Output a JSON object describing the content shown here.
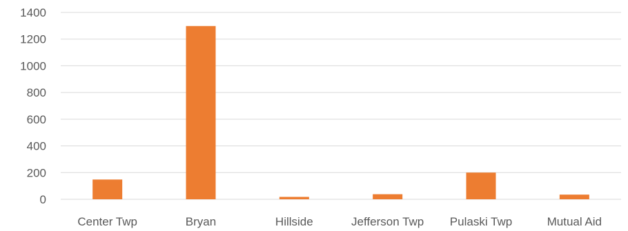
{
  "chart_data": {
    "type": "bar",
    "title": "",
    "xlabel": "",
    "ylabel": "",
    "categories": [
      "Center Twp",
      "Bryan",
      "Hillside",
      "Jefferson Twp",
      "Pulaski Twp",
      "Mutual Aid"
    ],
    "values": [
      148,
      1298,
      18,
      38,
      200,
      35
    ],
    "ylim": [
      0,
      1400
    ],
    "yticks": [
      "0",
      "200",
      "400",
      "600",
      "800",
      "1000",
      "1200",
      "1400"
    ],
    "grid": true,
    "legend": "none",
    "colors": {
      "bar": "#ed7d31",
      "grid": "#d9d9d9",
      "text": "#595959"
    }
  }
}
